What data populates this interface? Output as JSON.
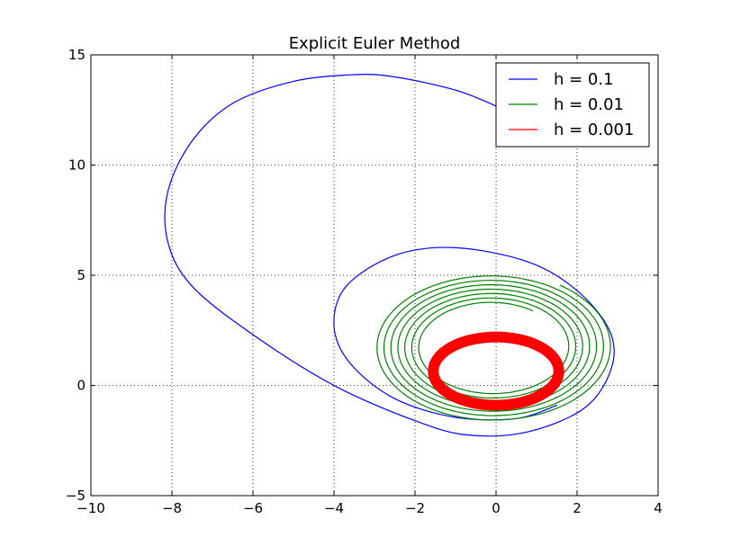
{
  "chart_data": {
    "type": "line",
    "title": "Explicit Euler Method",
    "xlabel": "",
    "ylabel": "",
    "xlim": [
      -10,
      4
    ],
    "ylim": [
      -5,
      15
    ],
    "xticks": [
      -10,
      -8,
      -6,
      -4,
      -2,
      0,
      2,
      4
    ],
    "yticks": [
      -5,
      0,
      5,
      10,
      15
    ],
    "xtick_labels": [
      "−10",
      "−8",
      "−6",
      "−4",
      "−2",
      "0",
      "2",
      "4"
    ],
    "ytick_labels": [
      "−5",
      "0",
      "5",
      "10",
      "15"
    ],
    "grid": true,
    "legend_position": "top-right",
    "series": [
      {
        "name": "h = 0.1",
        "color": "#0000ff",
        "width": 1.2,
        "points": [
          [
            0.1,
            12.6
          ],
          [
            -1.0,
            13.4
          ],
          [
            -2.5,
            14.0
          ],
          [
            -3.5,
            14.1
          ],
          [
            -5.0,
            13.8
          ],
          [
            -6.5,
            12.8
          ],
          [
            -7.5,
            11.1
          ],
          [
            -8.1,
            8.8
          ],
          [
            -8.1,
            6.5
          ],
          [
            -7.5,
            4.5
          ],
          [
            -6.0,
            2.3
          ],
          [
            -4.0,
            0.0
          ],
          [
            -2.0,
            -1.6
          ],
          [
            -0.7,
            -2.25
          ],
          [
            0.8,
            -2.1
          ],
          [
            2.2,
            -1.0
          ],
          [
            2.85,
            0.8
          ],
          [
            2.8,
            2.5
          ],
          [
            2.0,
            4.3
          ],
          [
            0.8,
            5.6
          ],
          [
            -1.0,
            6.25
          ],
          [
            -2.5,
            5.9
          ],
          [
            -3.7,
            4.5
          ],
          [
            -4.0,
            2.7
          ],
          [
            -3.6,
            1.0
          ],
          [
            -2.5,
            -0.6
          ],
          [
            -1.0,
            -1.45
          ],
          [
            0.5,
            -1.5
          ],
          [
            1.5,
            -0.9
          ]
        ]
      },
      {
        "name": "h = 0.01",
        "color": "#008000",
        "width": 1.2,
        "spiral": {
          "center": [
            -0.1,
            1.75
          ],
          "rx_start": 2.95,
          "ry_start": 3.4,
          "rx_end": 1.75,
          "ry_end": 2.0,
          "theta_start_deg": 55,
          "turns": 7
        }
      },
      {
        "name": "h = 0.001",
        "color": "#ff0000",
        "width": 12,
        "ellipse": {
          "center": [
            0.0,
            0.65
          ],
          "rx": 1.55,
          "ry": 1.55
        }
      }
    ]
  }
}
